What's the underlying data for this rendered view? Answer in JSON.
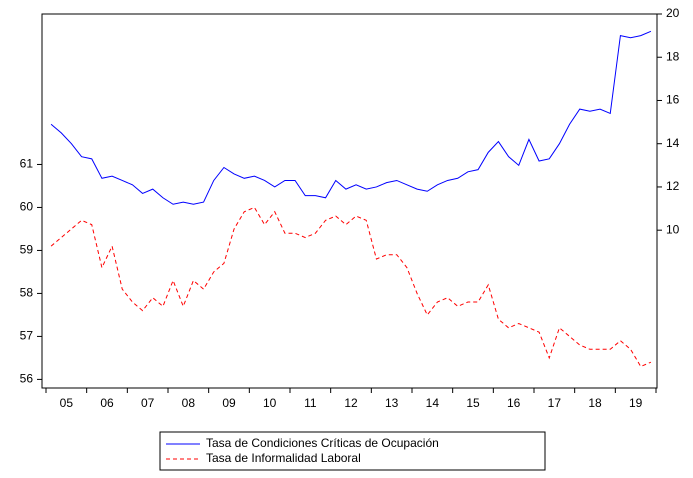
{
  "chart_data": {
    "type": "line",
    "categories": [
      "05",
      null,
      null,
      null,
      "06",
      null,
      null,
      null,
      "07",
      null,
      null,
      null,
      "08",
      null,
      null,
      null,
      "09",
      null,
      null,
      null,
      "10",
      null,
      null,
      null,
      "11",
      null,
      null,
      null,
      "12",
      null,
      null,
      null,
      "13",
      null,
      null,
      null,
      "14",
      null,
      null,
      null,
      "15",
      null,
      null,
      null,
      "16",
      null,
      null,
      null,
      "17",
      null,
      null,
      null,
      "18",
      null,
      null,
      null,
      "19",
      null,
      null,
      null
    ],
    "series": [
      {
        "name": "Tasa de Condiciones Críticas de Ocupación",
        "color": "#0000ff",
        "line_style": "solid",
        "axis": "y2",
        "values": [
          14.9,
          14.5,
          14.0,
          13.4,
          13.3,
          12.4,
          12.5,
          12.3,
          12.1,
          11.7,
          11.9,
          11.5,
          11.2,
          11.3,
          11.2,
          11.3,
          12.3,
          12.9,
          12.6,
          12.4,
          12.5,
          12.3,
          12.0,
          12.3,
          12.3,
          11.6,
          11.6,
          11.5,
          12.3,
          11.9,
          12.1,
          11.9,
          12.0,
          12.2,
          12.3,
          12.1,
          11.9,
          11.8,
          12.1,
          12.3,
          12.4,
          12.7,
          12.8,
          13.6,
          14.1,
          13.4,
          13.0,
          14.2,
          13.2,
          13.3,
          14.0,
          14.9,
          15.6,
          15.5,
          15.6,
          15.4,
          19.0,
          18.9,
          19.0,
          19.2
        ]
      },
      {
        "name": "Tasa de Informalidad Laboral",
        "color": "#ff0000",
        "line_style": "dashed",
        "axis": "y",
        "values": [
          59.1,
          59.3,
          59.5,
          59.7,
          59.6,
          58.6,
          59.1,
          58.1,
          57.8,
          57.6,
          57.9,
          57.7,
          58.3,
          57.7,
          58.3,
          58.1,
          58.5,
          58.7,
          59.5,
          59.9,
          60.0,
          59.6,
          59.9,
          59.4,
          59.4,
          59.3,
          59.4,
          59.7,
          59.8,
          59.6,
          59.8,
          59.7,
          58.8,
          58.9,
          58.9,
          58.6,
          58.0,
          57.5,
          57.8,
          57.9,
          57.7,
          57.8,
          57.8,
          58.2,
          57.4,
          57.2,
          57.3,
          57.2,
          57.1,
          56.5,
          57.2,
          57.0,
          56.8,
          56.7,
          56.7,
          56.7,
          56.9,
          56.7,
          56.3,
          56.4
        ]
      }
    ],
    "ylim": [
      55.8,
      64.5
    ],
    "yticks": [
      56,
      57,
      58,
      59,
      60,
      61
    ],
    "y2lim": [
      2.7,
      20
    ],
    "y2ticks": [
      10,
      12,
      14,
      16,
      18,
      20
    ]
  }
}
